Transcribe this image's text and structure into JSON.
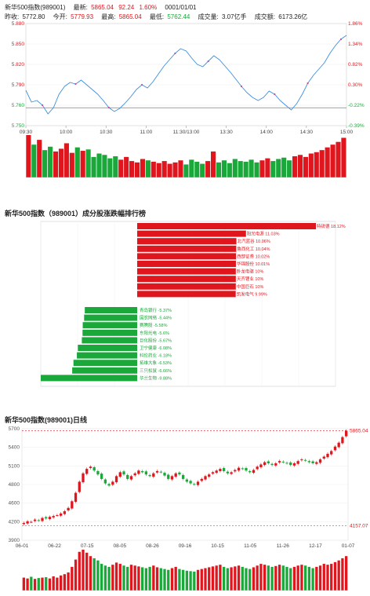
{
  "header": {
    "title": "新华500指数(989001)",
    "latest_label": "最新:",
    "latest": "5865.04",
    "change": "92.24",
    "change_pct": "1.60%",
    "date": "0001/01/01",
    "prev_close_label": "昨收:",
    "prev_close": "5772.80",
    "open_label": "今开:",
    "open": "5779.93",
    "high_label": "最高:",
    "high": "5865.04",
    "low_label": "最低:",
    "low": "5762.44",
    "volume_label": "成交量:",
    "volume": "3.07亿手",
    "amount_label": "成交额:",
    "amount": "6173.26亿"
  },
  "colors": {
    "up": "#e0161e",
    "down": "#1aa83a",
    "line": "#3d8fe0",
    "axis": "#999999"
  },
  "chart_data": [
    {
      "type": "line",
      "name": "intraday",
      "y_ticks_left": [
        "5.880",
        "5.850",
        "5.820",
        "5.790",
        "5.760",
        "5.750"
      ],
      "y_ticks_right": [
        "1.86%",
        "1.34%",
        "0.82%",
        "0.30%",
        "-0.22%",
        "-0.39%"
      ],
      "x_ticks": [
        "09:30",
        "10:00",
        "10:30",
        "11:00",
        "11:30/13:00",
        "13:30",
        "14:00",
        "14:30",
        "15:00"
      ],
      "ylim": [
        5.75,
        5.88
      ],
      "prev_close": 5.7728,
      "price": [
        5.795,
        5.78,
        5.782,
        5.776,
        5.765,
        5.773,
        5.79,
        5.8,
        5.805,
        5.803,
        5.808,
        5.802,
        5.796,
        5.79,
        5.782,
        5.773,
        5.768,
        5.772,
        5.779,
        5.787,
        5.796,
        5.802,
        5.798,
        5.806,
        5.816,
        5.826,
        5.834,
        5.842,
        5.848,
        5.845,
        5.836,
        5.828,
        5.825,
        5.832,
        5.839,
        5.834,
        5.826,
        5.818,
        5.809,
        5.8,
        5.792,
        5.786,
        5.782,
        5.786,
        5.794,
        5.79,
        5.782,
        5.776,
        5.77,
        5.778,
        5.79,
        5.804,
        5.814,
        5.822,
        5.83,
        5.842,
        5.852,
        5.86,
        5.865
      ]
    },
    {
      "type": "bar",
      "name": "intraday-volume",
      "values": [
        62,
        48,
        55,
        40,
        45,
        38,
        42,
        50,
        36,
        44,
        39,
        41,
        30,
        35,
        33,
        28,
        31,
        26,
        30,
        24,
        22,
        27,
        25,
        23,
        21,
        24,
        20,
        22,
        25,
        19,
        26,
        23,
        20,
        24,
        38,
        22,
        25,
        21,
        27,
        24,
        23,
        26,
        22,
        25,
        28,
        24,
        27,
        29,
        25,
        31,
        33,
        30,
        35,
        37,
        40,
        44,
        48,
        52,
        58
      ]
    },
    {
      "type": "bar",
      "name": "constituents-ranking",
      "title": "新华500指数（989001）成分股涨跌幅排行榜",
      "top": [
        {
          "name": "特锐德",
          "pct": 18.12
        },
        {
          "name": "阳光电源",
          "pct": 11.03
        },
        {
          "name": "北汽蓝谷",
          "pct": 10.06
        },
        {
          "name": "鲁西化工",
          "pct": 10.04
        },
        {
          "name": "西部证券",
          "pct": 10.02
        },
        {
          "name": "华锦股份",
          "pct": 10.01
        },
        {
          "name": "卧龙电驱",
          "pct": 10
        },
        {
          "name": "天齐锂业",
          "pct": 10
        },
        {
          "name": "中国巨石",
          "pct": 10
        },
        {
          "name": "凯发电气",
          "pct": 9.99
        }
      ],
      "bottom": [
        {
          "name": "青岛银行",
          "pct": -5.37
        },
        {
          "name": "国农网络",
          "pct": -5.44
        },
        {
          "name": "赛腾股",
          "pct": -5.58
        },
        {
          "name": "东阳光电",
          "pct": -5.6
        },
        {
          "name": "巨化股份",
          "pct": -5.67
        },
        {
          "name": "卫宁健康",
          "pct": -6.08
        },
        {
          "name": "科伦药业",
          "pct": -6.18
        },
        {
          "name": "拓维大象",
          "pct": -6.53
        },
        {
          "name": "三只松鼠",
          "pct": -6.66
        },
        {
          "name": "华兰生物",
          "pct": -9.88
        }
      ]
    },
    {
      "type": "candlestick",
      "name": "daily",
      "title": "新华500指数(989001)日线",
      "y_ticks": [
        "5700",
        "5400",
        "5100",
        "4800",
        "4600",
        "4200",
        "3900"
      ],
      "ylim": [
        3900,
        5900
      ],
      "x_ticks": [
        "06-01",
        "06-22",
        "07-15",
        "08-05",
        "08-26",
        "09-16",
        "10-15",
        "11-05",
        "11-26",
        "12-17",
        "01-07"
      ],
      "max_label": "5865.04",
      "min_label": "4157.07",
      "close": [
        4210,
        4240,
        4230,
        4270,
        4255,
        4300,
        4290,
        4320,
        4335,
        4350,
        4380,
        4420,
        4480,
        4600,
        4750,
        4950,
        5100,
        5180,
        5220,
        5150,
        5080,
        5000,
        4920,
        4880,
        4950,
        5050,
        5120,
        5080,
        5000,
        5050,
        5100,
        5150,
        5120,
        5080,
        5050,
        5100,
        5140,
        5120,
        5060,
        5000,
        5050,
        5100,
        5080,
        5000,
        4950,
        4920,
        4900,
        4950,
        5000,
        5050,
        5080,
        5120,
        5150,
        5180,
        5140,
        5100,
        5120,
        5160,
        5200,
        5180,
        5150,
        5120,
        5160,
        5220,
        5260,
        5300,
        5280,
        5250,
        5280,
        5320,
        5300,
        5280,
        5250,
        5280,
        5320,
        5350,
        5330,
        5300,
        5280,
        5300,
        5350,
        5400,
        5450,
        5500,
        5580,
        5650,
        5750,
        5865
      ],
      "volume": [
        30,
        28,
        32,
        27,
        29,
        30,
        31,
        28,
        33,
        30,
        35,
        38,
        42,
        55,
        72,
        90,
        95,
        88,
        80,
        75,
        70,
        62,
        58,
        55,
        60,
        65,
        62,
        58,
        55,
        60,
        58,
        56,
        54,
        52,
        55,
        58,
        54,
        52,
        50,
        48,
        52,
        55,
        50,
        48,
        46,
        45,
        44,
        48,
        50,
        52,
        54,
        56,
        58,
        60,
        55,
        52,
        54,
        56,
        58,
        55,
        52,
        50,
        54,
        58,
        62,
        60,
        58,
        55,
        57,
        60,
        58,
        55,
        52,
        55,
        58,
        60,
        58,
        55,
        52,
        55,
        58,
        62,
        60,
        62,
        66,
        70,
        75,
        80
      ]
    }
  ]
}
